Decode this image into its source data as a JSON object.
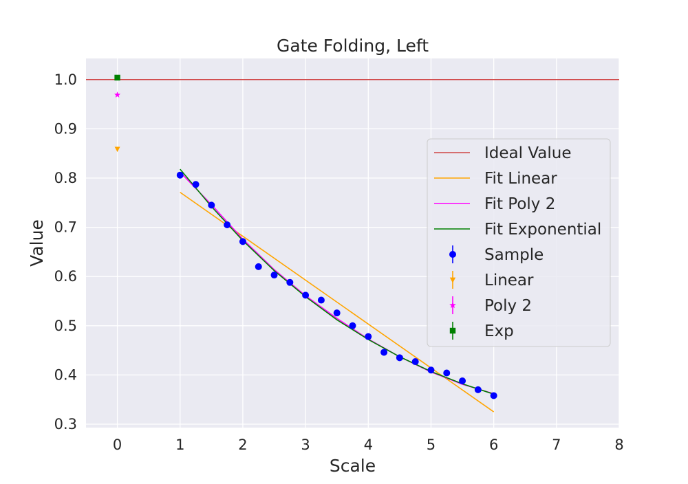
{
  "chart_data": {
    "type": "scatter",
    "title": "Gate Folding, Left",
    "xlabel": "Scale",
    "ylabel": "Value",
    "xlim": [
      -0.5,
      8
    ],
    "ylim": [
      0.293,
      1.043
    ],
    "x_ticks": [
      0,
      1,
      2,
      3,
      4,
      5,
      6,
      7,
      8
    ],
    "y_ticks": [
      0.3,
      0.4,
      0.5,
      0.6,
      0.7,
      0.8,
      0.9,
      1.0
    ],
    "x_tick_labels": [
      "0",
      "1",
      "2",
      "3",
      "4",
      "5",
      "6",
      "7",
      "8"
    ],
    "y_tick_labels": [
      "0.3",
      "0.4",
      "0.5",
      "0.6",
      "0.7",
      "0.8",
      "0.9",
      "1.0"
    ],
    "grid": true,
    "legend_position": "right",
    "background_color": "#eaeaf2",
    "ideal_value": {
      "name": "Ideal Value",
      "y": 1.0,
      "color": "#d04545"
    },
    "fit_lines": [
      {
        "name": "Fit Linear",
        "color": "#ffa500",
        "x": [
          1,
          6
        ],
        "y": [
          0.771,
          0.325
        ]
      },
      {
        "name": "Fit Poly 2",
        "color": "#ff00ff",
        "x": [
          1,
          1.5,
          2,
          2.5,
          3,
          3.5,
          4,
          4.5,
          5,
          5.5,
          6
        ],
        "y": [
          0.812,
          0.746,
          0.676,
          0.614,
          0.561,
          0.515,
          0.473,
          0.437,
          0.406,
          0.381,
          0.362
        ]
      },
      {
        "name": "Fit Exponential",
        "color": "#008000",
        "x": [
          1,
          1.5,
          2,
          2.5,
          3,
          3.5,
          4,
          4.5,
          5,
          5.5,
          6
        ],
        "y": [
          0.818,
          0.742,
          0.673,
          0.612,
          0.559,
          0.512,
          0.472,
          0.437,
          0.407,
          0.382,
          0.361
        ]
      }
    ],
    "sample": {
      "name": "Sample",
      "color": "#0000ff",
      "x": [
        1,
        1.25,
        1.5,
        1.75,
        2,
        2.25,
        2.5,
        2.75,
        3,
        3.25,
        3.5,
        3.75,
        4,
        4.25,
        4.5,
        4.75,
        5,
        5.25,
        5.5,
        5.75,
        6
      ],
      "y": [
        0.806,
        0.787,
        0.745,
        0.705,
        0.671,
        0.62,
        0.603,
        0.588,
        0.562,
        0.552,
        0.526,
        0.5,
        0.478,
        0.446,
        0.435,
        0.427,
        0.41,
        0.404,
        0.388,
        0.37,
        0.358
      ]
    },
    "extrapolations": [
      {
        "name": "Linear",
        "color": "#ffa500",
        "marker": "triangle-down",
        "x": 0,
        "y": 0.859
      },
      {
        "name": "Poly 2",
        "color": "#ff00ff",
        "marker": "star",
        "x": 0,
        "y": 0.969
      },
      {
        "name": "Exp",
        "color": "#008000",
        "marker": "square",
        "x": 0,
        "y": 1.004
      }
    ],
    "legend_entries": [
      "Ideal Value",
      "Fit Linear",
      "Fit Poly 2",
      "Fit Exponential",
      "Sample",
      "Linear",
      "Poly 2",
      "Exp"
    ]
  }
}
